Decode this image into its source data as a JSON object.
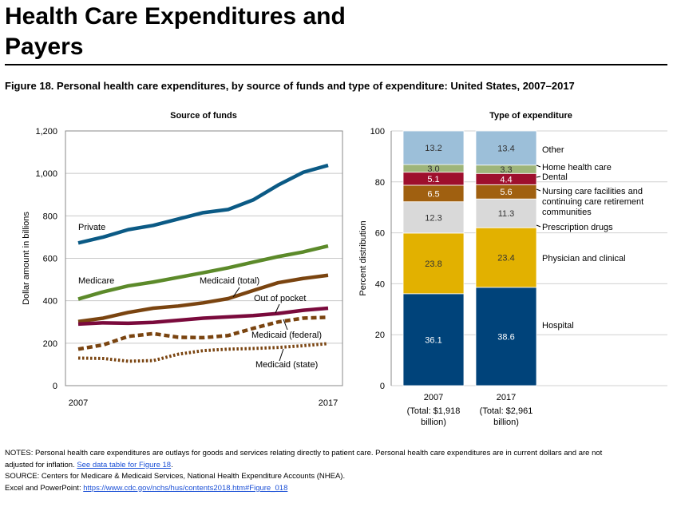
{
  "page": {
    "title_line1": "Health Care Expenditures and",
    "title_line2": "Payers",
    "figure_caption": "Figure 18. Personal health care expenditures, by source of funds and type of expenditure: United States, 2007–2017"
  },
  "notes": {
    "line1": "NOTES: Personal health care expenditures are outlays for goods and services relating directly to patient care. Personal health care expenditures are in current dollars and are not",
    "line2_text": "adjusted for inflation. ",
    "line2_link": "See data table for Figure 18",
    "line2_end": ".",
    "line3": "SOURCE: Centers for Medicare & Medicaid Services, National Health Expenditure Accounts (NHEA).",
    "line4_text": "Excel and PowerPoint: ",
    "line4_link": "https://www.cdc.gov/nchs/hus/contents2018.htm#Figure_018"
  },
  "chart_data": [
    {
      "type": "line",
      "title": "Source of funds",
      "xlabel": "",
      "ylabel": "Dollar amount in billions",
      "x": [
        2007,
        2008,
        2009,
        2010,
        2011,
        2012,
        2013,
        2014,
        2015,
        2016,
        2017
      ],
      "x_tick_labels": [
        "2007",
        "2017"
      ],
      "ylim": [
        0,
        1200
      ],
      "y_ticks": [
        "0",
        "200",
        "400",
        "600",
        "800",
        "1,000",
        "1,200"
      ],
      "grid": "horizontal",
      "series": [
        {
          "name": "Private",
          "color": "#0b5a85",
          "style": "solid",
          "values": [
            672,
            700,
            735,
            755,
            785,
            815,
            830,
            875,
            945,
            1005,
            1038
          ]
        },
        {
          "name": "Medicare",
          "color": "#5c8a2a",
          "style": "solid",
          "values": [
            408,
            442,
            470,
            488,
            510,
            532,
            555,
            582,
            608,
            630,
            658
          ]
        },
        {
          "name": "Medicaid (total)",
          "color": "#7a4410",
          "style": "solid",
          "values": [
            302,
            318,
            345,
            365,
            375,
            390,
            410,
            448,
            485,
            505,
            520
          ]
        },
        {
          "name": "Out of pocket",
          "color": "#7a0a3c",
          "style": "solid",
          "values": [
            290,
            296,
            294,
            298,
            308,
            318,
            324,
            330,
            340,
            355,
            365
          ]
        },
        {
          "name": "Medicaid (federal)",
          "color": "#7a4410",
          "style": "dashed",
          "values": [
            172,
            192,
            232,
            245,
            228,
            226,
            236,
            270,
            300,
            318,
            322
          ]
        },
        {
          "name": "Medicaid (state)",
          "color": "#7a4410",
          "style": "dotted",
          "values": [
            130,
            128,
            115,
            118,
            148,
            165,
            172,
            175,
            180,
            188,
            198
          ]
        }
      ]
    },
    {
      "type": "bar",
      "stacked": true,
      "title": "Type of expenditure",
      "xlabel": "",
      "ylabel": "Percent distribution",
      "ylim": [
        0,
        100
      ],
      "y_ticks": [
        "0",
        "20",
        "40",
        "60",
        "80",
        "100"
      ],
      "grid": "horizontal",
      "categories": [
        "2007",
        "2017"
      ],
      "category_sublabels": [
        "(Total: $1,918",
        "(Total: $2,961"
      ],
      "category_sublabels2": [
        "billion)",
        "billion)"
      ],
      "series": [
        {
          "name": "Hospital",
          "color": "#00437a",
          "label_color": "#ffffff",
          "values": [
            36.1,
            38.6
          ],
          "labels": [
            "36.1",
            "38.6"
          ]
        },
        {
          "name": "Physician and clinical",
          "color": "#e2b100",
          "label_color": "#333333",
          "values": [
            23.8,
            23.4
          ],
          "labels": [
            "23.8",
            "23.4"
          ]
        },
        {
          "name": "Prescription drugs",
          "color": "#d9d9d9",
          "label_color": "#333333",
          "values": [
            12.3,
            11.3
          ],
          "labels": [
            "12.3",
            "11.3"
          ]
        },
        {
          "name": "Nursing care facilities and continuing care retirement communities",
          "color": "#a06010",
          "label_color": "#ffffff",
          "values": [
            6.5,
            5.6
          ],
          "labels": [
            "6.5",
            "5.6"
          ]
        },
        {
          "name": "Dental",
          "color": "#9e0f2d",
          "label_color": "#ffffff",
          "values": [
            5.1,
            4.4
          ],
          "labels": [
            "5.1",
            "4.4"
          ]
        },
        {
          "name": "Home health care",
          "color": "#9eb57a",
          "label_color": "#333333",
          "values": [
            3.0,
            3.3
          ],
          "labels": [
            "3.0",
            "3.3"
          ]
        },
        {
          "name": "Other",
          "color": "#9cbfd9",
          "label_color": "#333333",
          "values": [
            13.2,
            13.4
          ],
          "labels": [
            "13.2",
            "13.4"
          ]
        }
      ],
      "legend_lines": [
        [
          "Other"
        ],
        [
          "Home health care"
        ],
        [
          "Dental"
        ],
        [
          "Nursing care facilities and",
          "continuing care retirement",
          "communities"
        ],
        [
          "Prescription drugs"
        ],
        [
          "Physician and clinical"
        ],
        [
          "Hospital"
        ]
      ]
    }
  ]
}
